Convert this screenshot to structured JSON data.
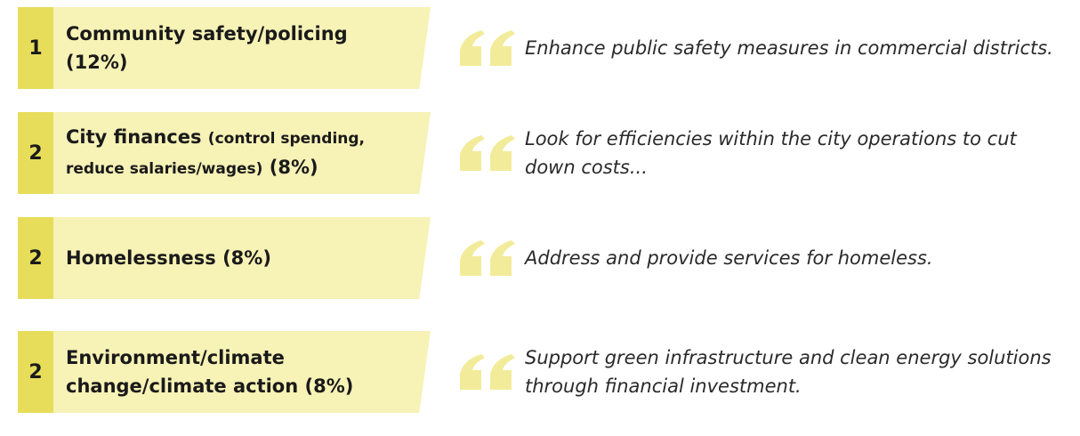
{
  "items": [
    {
      "rank": "1",
      "label": "Community safety/policing",
      "share": "(12%)",
      "quote": "Enhance public safety measures in commercial districts."
    },
    {
      "rank": "2",
      "label": "City finances",
      "detail": "(control spending, reduce salaries/wages)",
      "share": "(8%)",
      "quote": "Look for efficiencies within the city operations to cut down costs..."
    },
    {
      "rank": "2",
      "label": "Homelessness",
      "share": "(8%)",
      "quote": "Address and provide services for homeless."
    },
    {
      "rank": "2",
      "label": "Environment/climate change/climate action",
      "share": "(8%)",
      "quote": "Support green infrastructure and clean energy solutions through financial investment."
    }
  ]
}
